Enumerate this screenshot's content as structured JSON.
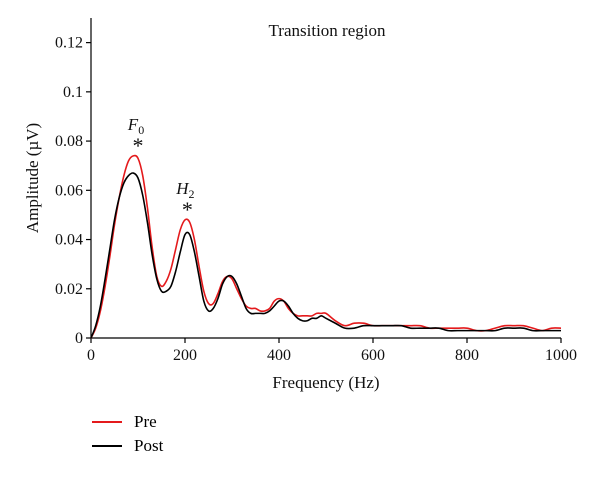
{
  "chart_data": {
    "type": "line",
    "title": "Transition region",
    "xlabel": "Frequency (Hz)",
    "ylabel": "Amplitude (µV)",
    "xlim": [
      0,
      1000
    ],
    "ylim": [
      0,
      0.13
    ],
    "xticks": [
      0,
      200,
      400,
      600,
      800,
      1000
    ],
    "yticks": [
      0,
      0.02,
      0.04,
      0.06,
      0.08,
      0.1,
      0.12
    ],
    "grid": false,
    "legend_position": "bottom-left",
    "annotations": [
      {
        "label": "F",
        "subscript": "0",
        "marker": "*",
        "x": 100,
        "y": 0.074
      },
      {
        "label": "H",
        "subscript": "2",
        "marker": "*",
        "x": 205,
        "y": 0.048
      }
    ],
    "series": [
      {
        "name": "Pre",
        "color": "#e41a1c",
        "x": [
          0,
          10,
          20,
          30,
          40,
          50,
          60,
          70,
          80,
          90,
          100,
          110,
          120,
          130,
          140,
          150,
          160,
          170,
          180,
          190,
          200,
          210,
          220,
          230,
          240,
          250,
          260,
          270,
          280,
          290,
          300,
          310,
          320,
          330,
          340,
          350,
          360,
          370,
          380,
          390,
          400,
          410,
          420,
          430,
          440,
          450,
          460,
          470,
          480,
          490,
          500,
          520,
          540,
          560,
          580,
          600,
          620,
          640,
          660,
          680,
          700,
          720,
          740,
          760,
          780,
          800,
          820,
          840,
          860,
          880,
          900,
          920,
          940,
          960,
          980,
          1000
        ],
        "y": [
          0.0,
          0.004,
          0.011,
          0.021,
          0.033,
          0.046,
          0.057,
          0.066,
          0.072,
          0.074,
          0.073,
          0.066,
          0.053,
          0.037,
          0.025,
          0.021,
          0.023,
          0.028,
          0.036,
          0.044,
          0.048,
          0.047,
          0.04,
          0.029,
          0.019,
          0.014,
          0.014,
          0.018,
          0.023,
          0.025,
          0.024,
          0.02,
          0.016,
          0.013,
          0.012,
          0.012,
          0.011,
          0.011,
          0.012,
          0.015,
          0.016,
          0.015,
          0.012,
          0.01,
          0.009,
          0.009,
          0.009,
          0.009,
          0.01,
          0.01,
          0.01,
          0.007,
          0.005,
          0.006,
          0.006,
          0.005,
          0.005,
          0.005,
          0.005,
          0.005,
          0.005,
          0.004,
          0.004,
          0.004,
          0.004,
          0.004,
          0.003,
          0.003,
          0.004,
          0.005,
          0.005,
          0.005,
          0.004,
          0.003,
          0.004,
          0.004
        ]
      },
      {
        "name": "Post",
        "color": "#000000",
        "x": [
          0,
          10,
          20,
          30,
          40,
          50,
          60,
          70,
          80,
          90,
          100,
          110,
          120,
          130,
          140,
          150,
          160,
          170,
          180,
          190,
          200,
          210,
          220,
          230,
          240,
          250,
          260,
          270,
          280,
          290,
          300,
          310,
          320,
          330,
          340,
          350,
          360,
          370,
          380,
          390,
          400,
          410,
          420,
          430,
          440,
          450,
          460,
          470,
          480,
          490,
          500,
          520,
          540,
          560,
          580,
          600,
          620,
          640,
          660,
          680,
          700,
          720,
          740,
          760,
          780,
          800,
          820,
          840,
          860,
          880,
          900,
          920,
          940,
          960,
          980,
          1000
        ],
        "y": [
          0.0,
          0.005,
          0.013,
          0.024,
          0.036,
          0.048,
          0.057,
          0.063,
          0.066,
          0.067,
          0.065,
          0.058,
          0.047,
          0.034,
          0.024,
          0.019,
          0.019,
          0.021,
          0.027,
          0.035,
          0.042,
          0.042,
          0.035,
          0.025,
          0.015,
          0.011,
          0.012,
          0.016,
          0.022,
          0.025,
          0.025,
          0.022,
          0.017,
          0.012,
          0.01,
          0.01,
          0.01,
          0.01,
          0.011,
          0.013,
          0.015,
          0.015,
          0.013,
          0.01,
          0.008,
          0.007,
          0.007,
          0.008,
          0.008,
          0.009,
          0.008,
          0.006,
          0.004,
          0.004,
          0.005,
          0.005,
          0.005,
          0.005,
          0.005,
          0.004,
          0.004,
          0.004,
          0.004,
          0.003,
          0.003,
          0.003,
          0.003,
          0.003,
          0.003,
          0.004,
          0.004,
          0.004,
          0.003,
          0.003,
          0.003,
          0.003
        ]
      }
    ]
  }
}
